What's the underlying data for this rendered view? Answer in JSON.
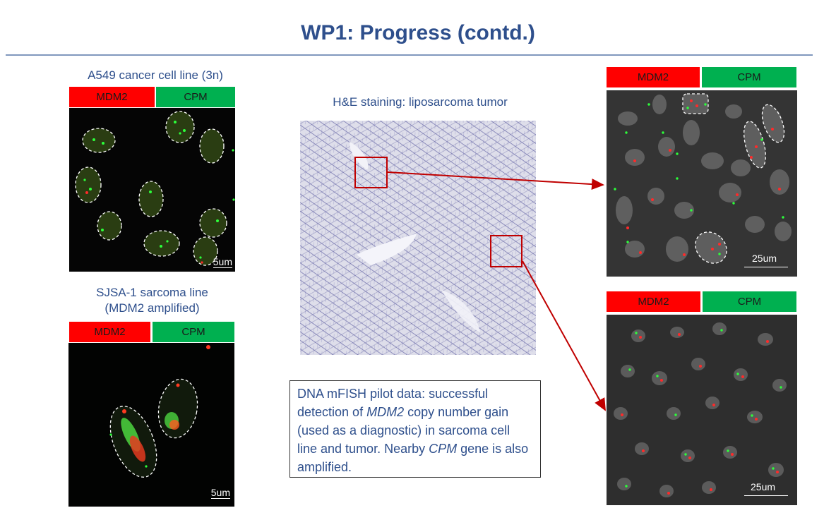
{
  "slide": {
    "title": "WP1: Progress (contd.)"
  },
  "a549": {
    "caption": "A549 cancer cell line (3n)",
    "label_red": "MDM2",
    "label_green": "CPM",
    "scale": "5um"
  },
  "sjsa": {
    "caption_line1": "SJSA-1 sarcoma line",
    "caption_line2": "(MDM2 amplified)",
    "label_red": "MDM2",
    "label_green": "CPM",
    "scale": "5um"
  },
  "he": {
    "caption": "H&E staining: liposarcoma tumor"
  },
  "tumor_top": {
    "label_red": "MDM2",
    "label_green": "CPM",
    "scale": "25um"
  },
  "tumor_bottom": {
    "label_red": "MDM2",
    "label_green": "CPM",
    "scale": "25um"
  },
  "summary": {
    "part1": "DNA mFISH pilot data: successful detection of ",
    "gene1": "MDM2",
    "part2": " copy number gain (used as a diagnostic) in sarcoma cell line and tumor. Nearby ",
    "gene2": "CPM",
    "part3": " gene is also amplified."
  },
  "colors": {
    "title": "#2e4f8c",
    "mdm2": "#ff0000",
    "cpm": "#00b050",
    "arrow": "#c00000"
  }
}
